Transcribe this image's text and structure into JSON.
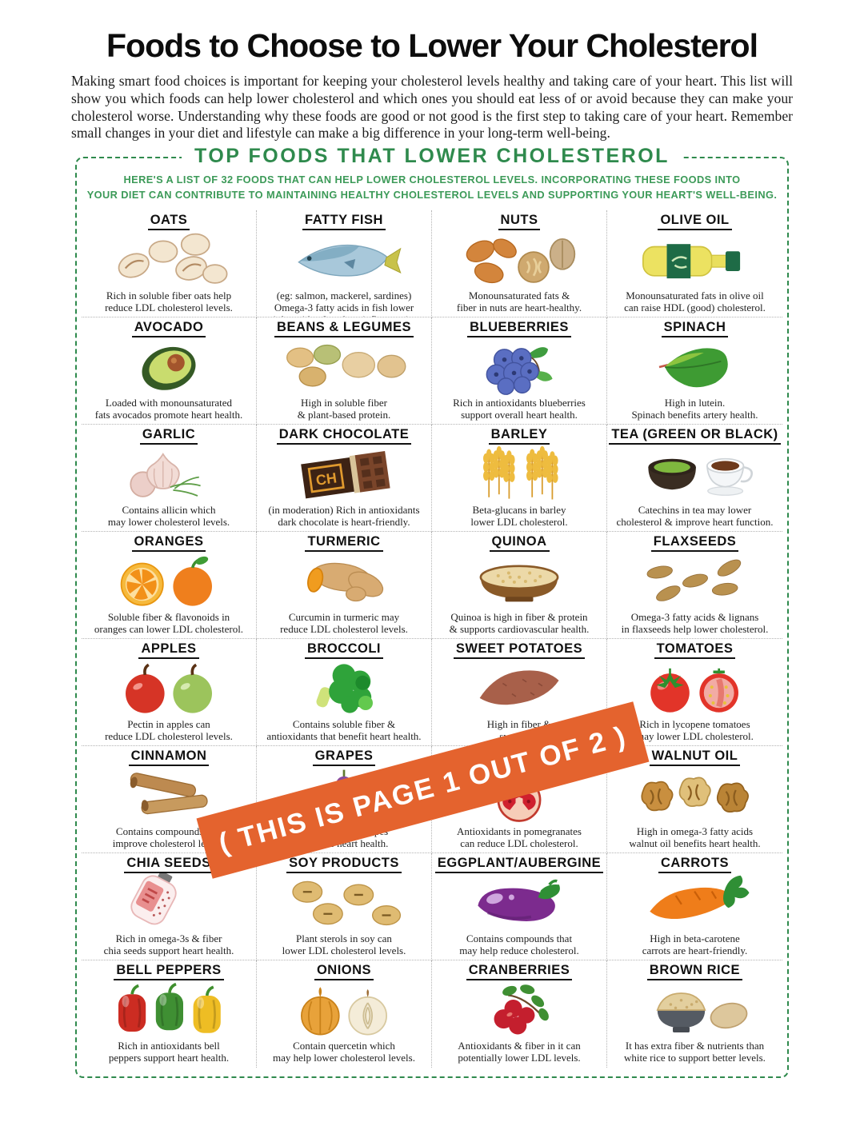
{
  "page": {
    "title": "Foods to Choose to Lower Your Cholesterol",
    "intro": "Making smart food choices is important for keeping your cholesterol levels healthy and taking care of your heart. This list will show you which foods can help lower cholesterol and which ones you should eat less of or avoid because they can make your cholesterol worse. Understanding why these foods are good or not good is the first step to taking care of your heart. Remember small changes in your diet and lifestyle can make a big difference in your long-term well-being."
  },
  "panel": {
    "title": "TOP FOODS THAT LOWER CHOLESTEROL",
    "subtitle": "HERE'S A LIST OF 32 FOODS THAT CAN HELP LOWER CHOLESTEROL LEVELS. INCORPORATING THESE FOODS INTO\nYOUR DIET CAN CONTRIBUTE TO MAINTAINING HEALTHY CHOLESTEROL LEVELS AND SUPPORTING YOUR HEART'S WELL-BEING.",
    "border_color": "#2f8a4d",
    "title_color": "#2f8a4d",
    "subtitle_color": "#3c9a58"
  },
  "banner": {
    "text": "( THIS IS PAGE 1 OUT OF 2 )",
    "color": "#e4632e",
    "text_color": "#ffffff"
  },
  "foods": [
    {
      "name": "OATS",
      "icon": "oats",
      "desc": "Rich in soluble fiber oats help\nreduce LDL cholesterol levels."
    },
    {
      "name": "FATTY FISH",
      "icon": "fatty-fish",
      "desc": "(eg: salmon, mackerel, sardines)\nOmega-3 fatty acids in fish lower\ntriglycerides & reduce inflammation."
    },
    {
      "name": "NUTS",
      "icon": "nuts",
      "desc": "Monounsaturated fats &\nfiber in nuts are heart-healthy."
    },
    {
      "name": "OLIVE OIL",
      "icon": "olive-oil",
      "desc": "Monounsaturated fats in olive oil\ncan raise HDL (good) cholesterol."
    },
    {
      "name": "AVOCADO",
      "icon": "avocado",
      "desc": "Loaded with monounsaturated\nfats avocados promote heart health."
    },
    {
      "name": "BEANS & LEGUMES",
      "icon": "beans",
      "desc": "High in soluble fiber\n& plant-based protein."
    },
    {
      "name": "BLUEBERRIES",
      "icon": "blueberries",
      "desc": "Rich in antioxidants blueberries\nsupport overall heart health."
    },
    {
      "name": "SPINACH",
      "icon": "spinach",
      "desc": "High in lutein.\nSpinach benefits artery health."
    },
    {
      "name": "GARLIC",
      "icon": "garlic",
      "desc": "Contains allicin which\nmay lower cholesterol levels."
    },
    {
      "name": "DARK CHOCOLATE",
      "icon": "dark-chocolate",
      "desc": "(in moderation) Rich in antioxidants\ndark chocolate is heart-friendly."
    },
    {
      "name": "BARLEY",
      "icon": "barley",
      "desc": "Beta-glucans in barley\nlower LDL cholesterol."
    },
    {
      "name": "TEA (GREEN OR BLACK)",
      "icon": "tea",
      "desc": "Catechins in tea may lower\ncholesterol & improve heart function."
    },
    {
      "name": "ORANGES",
      "icon": "oranges",
      "desc": "Soluble fiber & flavonoids in\noranges can lower LDL cholesterol."
    },
    {
      "name": "TURMERIC",
      "icon": "turmeric",
      "desc": "Curcumin in turmeric may\nreduce LDL cholesterol levels."
    },
    {
      "name": "QUINOA",
      "icon": "quinoa",
      "desc": "Quinoa is high in fiber & protein\n& supports cardiovascular health."
    },
    {
      "name": "FLAXSEEDS",
      "icon": "flaxseeds",
      "desc": "Omega-3 fatty acids & lignans\nin flaxseeds help lower cholesterol."
    },
    {
      "name": "APPLES",
      "icon": "apples",
      "desc": "Pectin in apples can\nreduce LDL cholesterol levels."
    },
    {
      "name": "BROCCOLI",
      "icon": "broccoli",
      "desc": "Contains soluble fiber &\nantioxidants that benefit heart health."
    },
    {
      "name": "SWEET POTATOES",
      "icon": "sweet-potatoes",
      "desc": "High in fiber &\nsweet pot"
    },
    {
      "name": "TOMATOES",
      "icon": "tomatoes",
      "desc": "Rich in lycopene tomatoes\nmay lower LDL cholesterol."
    },
    {
      "name": "CINNAMON",
      "icon": "cinnamon",
      "desc": "Contains compounds that\nimprove cholesterol levels."
    },
    {
      "name": "GRAPES",
      "icon": "grapes",
      "desc": "Resveratrol in grapes\npromote heart health."
    },
    {
      "name": "POMEGRANATE",
      "icon": "pomegranate",
      "desc": "Antioxidants in pomegranates\ncan reduce LDL cholesterol."
    },
    {
      "name": "WALNUT OIL",
      "icon": "walnut-oil",
      "desc": "High in omega-3 fatty acids\nwalnut oil benefits heart health."
    },
    {
      "name": "CHIA SEEDS",
      "icon": "chia-seeds",
      "desc": "Rich in omega-3s & fiber\nchia seeds support heart health."
    },
    {
      "name": "SOY PRODUCTS",
      "icon": "soy",
      "desc": "Plant sterols in soy can\nlower LDL cholesterol levels."
    },
    {
      "name": "EGGPLANT/AUBERGINE",
      "icon": "eggplant",
      "desc": "Contains compounds that\nmay help reduce cholesterol."
    },
    {
      "name": "CARROTS",
      "icon": "carrots",
      "desc": "High in beta-carotene\ncarrots are heart-friendly."
    },
    {
      "name": "BELL PEPPERS",
      "icon": "bell-peppers",
      "desc": "Rich in antioxidants bell\npeppers support heart health."
    },
    {
      "name": "ONIONS",
      "icon": "onions",
      "desc": "Contain quercetin which\nmay help lower cholesterol levels."
    },
    {
      "name": "CRANBERRIES",
      "icon": "cranberries",
      "desc": "Antioxidants & fiber in it can\npotentially lower LDL levels."
    },
    {
      "name": "BROWN RICE",
      "icon": "brown-rice",
      "desc": "It has extra fiber & nutrients than\nwhite rice to support better levels."
    }
  ]
}
